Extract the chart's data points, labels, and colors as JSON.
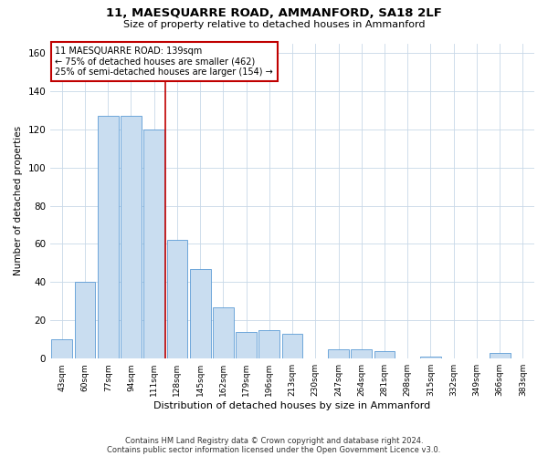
{
  "title": "11, MAESQUARRE ROAD, AMMANFORD, SA18 2LF",
  "subtitle": "Size of property relative to detached houses in Ammanford",
  "xlabel": "Distribution of detached houses by size in Ammanford",
  "ylabel": "Number of detached properties",
  "categories": [
    "43sqm",
    "60sqm",
    "77sqm",
    "94sqm",
    "111sqm",
    "128sqm",
    "145sqm",
    "162sqm",
    "179sqm",
    "196sqm",
    "213sqm",
    "230sqm",
    "247sqm",
    "264sqm",
    "281sqm",
    "298sqm",
    "315sqm",
    "332sqm",
    "349sqm",
    "366sqm",
    "383sqm"
  ],
  "values": [
    10,
    40,
    127,
    127,
    120,
    62,
    47,
    27,
    14,
    15,
    13,
    0,
    5,
    5,
    4,
    0,
    1,
    0,
    0,
    3,
    0
  ],
  "bar_color": "#c9ddf0",
  "bar_edge_color": "#5b9bd5",
  "vline_color": "#c00000",
  "annotation_text": "11 MAESQUARRE ROAD: 139sqm\n← 75% of detached houses are smaller (462)\n25% of semi-detached houses are larger (154) →",
  "annotation_box_color": "#c00000",
  "ylim": [
    0,
    165
  ],
  "yticks": [
    0,
    20,
    40,
    60,
    80,
    100,
    120,
    140,
    160
  ],
  "footer1": "Contains HM Land Registry data © Crown copyright and database right 2024.",
  "footer2": "Contains public sector information licensed under the Open Government Licence v3.0.",
  "bg_color": "#ffffff",
  "grid_color": "#c8d8e8"
}
